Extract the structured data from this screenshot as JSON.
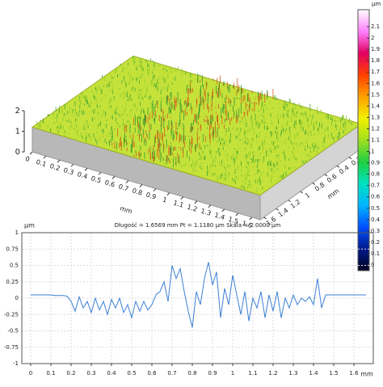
{
  "chart_data": [
    {
      "type": "surface3d",
      "xlabel": "mm",
      "ylabel": "mm",
      "xlim": [
        0,
        1.66
      ],
      "ylim": [
        0,
        1.66
      ],
      "zlim": [
        0,
        2
      ],
      "xticks": [
        0,
        0.1,
        0.2,
        0.3,
        0.4,
        0.5,
        0.6,
        0.7,
        0.8,
        0.9,
        1,
        1.1,
        1.2,
        1.3,
        1.4,
        1.5,
        1.6
      ],
      "yticks": [
        0,
        0.2,
        0.4,
        0.6,
        0.8,
        1,
        1.2,
        1.4,
        1.6
      ],
      "zticks": [
        0,
        1,
        2
      ]
    },
    {
      "type": "colorbar",
      "title": "µm",
      "lim": [
        -0.05,
        2.25
      ],
      "ticks": [
        0,
        0.1,
        0.2,
        0.3,
        0.4,
        0.5,
        0.6,
        0.7,
        0.8,
        0.9,
        1,
        1.1,
        1.2,
        1.3,
        1.4,
        1.5,
        1.6,
        1.7,
        1.8,
        1.9,
        2,
        2.1
      ],
      "colormap": [
        "#000020",
        "#001a8c",
        "#0050ff",
        "#00b4ff",
        "#00e0c0",
        "#20d040",
        "#a0e020",
        "#f0f000",
        "#ffa000",
        "#ff4000",
        "#e00060",
        "#ff80ff",
        "#ffffff"
      ]
    },
    {
      "type": "line",
      "title": "Długość = 1.6569 mm  Pt = 1.1180 µm  Skala = 2.0000 µm",
      "ylabel": "µm",
      "xlabel": "mm",
      "color": "#3a7fd5",
      "grid": true,
      "xlim": [
        -0.044,
        1.696
      ],
      "ylim": [
        -1,
        1
      ],
      "xticks": [
        0,
        0.1,
        0.2,
        0.3,
        0.4,
        0.5,
        0.6,
        0.7,
        0.8,
        0.9,
        1,
        1.1,
        1.2,
        1.3,
        1.4,
        1.5,
        1.6
      ],
      "yticks": [
        1,
        0.75,
        0.5,
        0.25,
        0,
        -0.25,
        -0.5,
        -0.75,
        -1
      ],
      "x": [
        0,
        0.02,
        0.04,
        0.06,
        0.08,
        0.1,
        0.12,
        0.14,
        0.16,
        0.18,
        0.2,
        0.22,
        0.24,
        0.26,
        0.28,
        0.3,
        0.32,
        0.34,
        0.36,
        0.38,
        0.4,
        0.42,
        0.44,
        0.46,
        0.48,
        0.5,
        0.52,
        0.54,
        0.56,
        0.58,
        0.6,
        0.62,
        0.64,
        0.66,
        0.68,
        0.7,
        0.72,
        0.74,
        0.76,
        0.78,
        0.8,
        0.82,
        0.84,
        0.86,
        0.88,
        0.9,
        0.92,
        0.94,
        0.96,
        0.98,
        1,
        1.02,
        1.04,
        1.06,
        1.08,
        1.1,
        1.12,
        1.14,
        1.16,
        1.18,
        1.2,
        1.22,
        1.24,
        1.26,
        1.28,
        1.3,
        1.32,
        1.34,
        1.36,
        1.38,
        1.4,
        1.42,
        1.44,
        1.46,
        1.48,
        1.5,
        1.52,
        1.54,
        1.56,
        1.58,
        1.6,
        1.62,
        1.64,
        1.66
      ],
      "values": [
        0.05,
        0.05,
        0.05,
        0.05,
        0.05,
        0.05,
        0.04,
        0.04,
        0.04,
        0.03,
        -0.05,
        -0.2,
        0.02,
        -0.15,
        -0.05,
        -0.22,
        0,
        -0.18,
        -0.05,
        -0.25,
        -0.02,
        -0.15,
        0,
        -0.22,
        -0.1,
        -0.3,
        -0.05,
        -0.2,
        -0.05,
        -0.18,
        -0.1,
        0.05,
        0.1,
        0.25,
        -0.05,
        0.5,
        0.3,
        0.45,
        0.1,
        -0.2,
        -0.45,
        0.1,
        -0.1,
        0.3,
        0.55,
        0.2,
        0.4,
        -0.3,
        0.15,
        -0.1,
        0.35,
        0.05,
        -0.25,
        0.1,
        -0.35,
        0,
        -0.15,
        0.1,
        -0.3,
        0.05,
        -0.2,
        0.1,
        -0.3,
        0,
        -0.15,
        0.05,
        -0.1,
        0,
        -0.05,
        0.02,
        -0.1,
        0.3,
        -0.15,
        0.05,
        0.05,
        0.05,
        0.05,
        0.05,
        0.05,
        0.05,
        0.05,
        0.05,
        0.05,
        0.05
      ]
    }
  ]
}
